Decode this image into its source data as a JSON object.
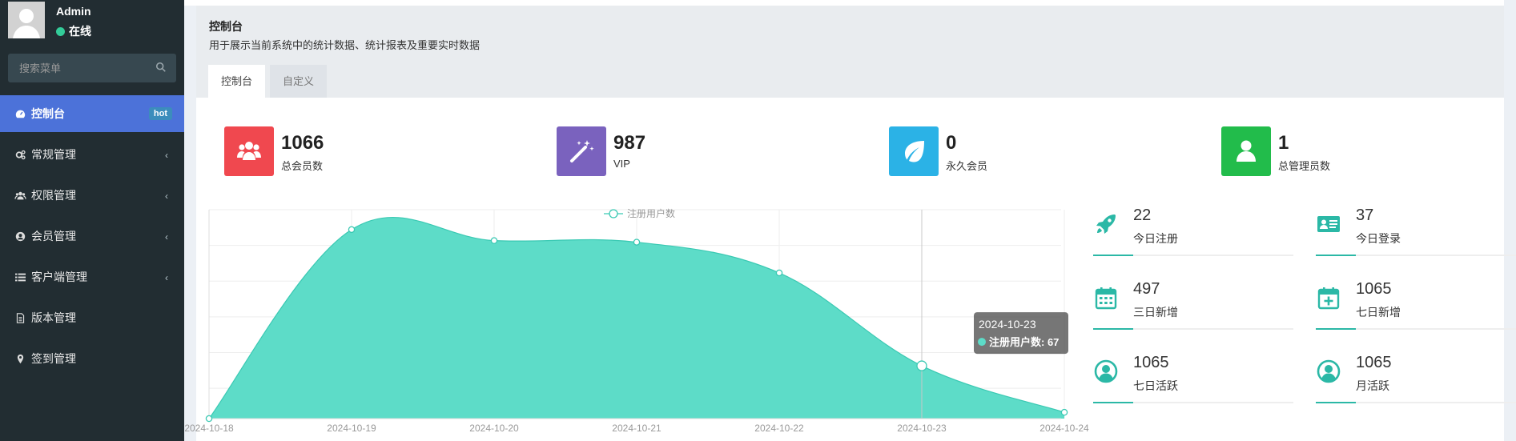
{
  "user": {
    "name": "Admin",
    "status": "在线"
  },
  "search": {
    "placeholder": "搜索菜单"
  },
  "menu": [
    {
      "label": "控制台",
      "icon": "dashboard-icon",
      "badge": "hot",
      "active": true
    },
    {
      "label": "常规管理",
      "icon": "cogs-icon",
      "arrow": "‹"
    },
    {
      "label": "权限管理",
      "icon": "group-icon",
      "arrow": "‹"
    },
    {
      "label": "会员管理",
      "icon": "user-circle-icon",
      "arrow": "‹"
    },
    {
      "label": "客户端管理",
      "icon": "list-icon",
      "arrow": "‹"
    },
    {
      "label": "版本管理",
      "icon": "file-icon"
    },
    {
      "label": "签到管理",
      "icon": "map-marker-icon"
    }
  ],
  "header": {
    "title": "控制台",
    "description": "用于展示当前系统中的统计数据、统计报表及重要实时数据",
    "tabs": [
      "控制台",
      "自定义"
    ]
  },
  "stats": [
    {
      "value": "1066",
      "label": "总会员数",
      "color": "#f0484f",
      "icon": "users-icon"
    },
    {
      "value": "987",
      "label": "VIP",
      "color": "#7a62be",
      "icon": "magic-wand-icon"
    },
    {
      "value": "0",
      "label": "永久会员",
      "color": "#2bb2e6",
      "icon": "leaf-icon"
    },
    {
      "value": "1",
      "label": "总管理员数",
      "color": "#22bc4b",
      "icon": "user-icon"
    }
  ],
  "mini_stats": [
    {
      "value": "22",
      "label": "今日注册",
      "icon": "rocket-icon"
    },
    {
      "value": "37",
      "label": "今日登录",
      "icon": "vcard-icon"
    },
    {
      "value": "497",
      "label": "三日新增",
      "icon": "calendar-icon"
    },
    {
      "value": "1065",
      "label": "七日新增",
      "icon": "calendar-plus-icon"
    },
    {
      "value": "1065",
      "label": "七日活跃",
      "icon": "user-circle-icon"
    },
    {
      "value": "1065",
      "label": "月活跃",
      "icon": "user-circle-icon"
    }
  ],
  "colors": {
    "accent": "#2bb8a6",
    "area_fill": "#5ddcc8",
    "sidebar_bg": "#222d32",
    "active_menu": "#4c72d9"
  },
  "chart_data": {
    "type": "area",
    "x": [
      "2024-10-18",
      "2024-10-19",
      "2024-10-20",
      "2024-10-21",
      "2024-10-22",
      "2024-10-23",
      "2024-10-24"
    ],
    "series": [
      {
        "name": "注册用户数",
        "values": [
          0,
          240,
          226,
          224,
          185,
          67,
          8
        ]
      }
    ],
    "tooltip": {
      "date": "2024-10-23",
      "label": "注册用户数: 67"
    },
    "grid": true,
    "legend": "top-center"
  }
}
